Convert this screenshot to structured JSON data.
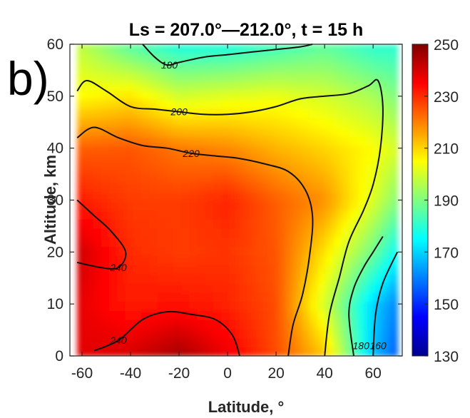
{
  "panel_label": "b)",
  "chart_data": {
    "type": "heatmap",
    "title": "Ls = 207.0°—212.0°, t = 15 h",
    "xlabel": "Latitude, °",
    "ylabel": "Altitude, km",
    "xlim": [
      -65,
      72
    ],
    "ylim": [
      0,
      60
    ],
    "x_ticks": [
      "-60",
      "-40",
      "-20",
      "0",
      "20",
      "40",
      "60"
    ],
    "y_ticks": [
      "0",
      "10",
      "20",
      "30",
      "40",
      "50",
      "60"
    ],
    "colorbar": {
      "range": [
        130,
        250
      ],
      "ticks": [
        "130",
        "150",
        "170",
        "190",
        "210",
        "230",
        "250"
      ],
      "colormap": [
        "#00008f",
        "#0000ff",
        "#00ffff",
        "#ffff00",
        "#ff0000",
        "#800000"
      ]
    },
    "temperature_grid": {
      "latitude": [
        -62,
        -40,
        -20,
        0,
        20,
        40,
        60,
        70
      ],
      "altitude": [
        0,
        10,
        20,
        30,
        40,
        50,
        60
      ],
      "values": [
        [
          238,
          240,
          246,
          237,
          226,
          212,
          168,
          155
        ],
        [
          238,
          232,
          233,
          231,
          226,
          200,
          170,
          160
        ],
        [
          241,
          230,
          228,
          229,
          225,
          208,
          188,
          175
        ],
        [
          232,
          228,
          228,
          231,
          224,
          218,
          201,
          190
        ],
        [
          224,
          225,
          221,
          219,
          214,
          210,
          205,
          200
        ],
        [
          205,
          208,
          200,
          202,
          203,
          200,
          195,
          190
        ],
        [
          198,
          185,
          178,
          178,
          182,
          186,
          180,
          180
        ]
      ]
    },
    "contour_levels": [
      "180",
      "200",
      "220",
      "240"
    ],
    "contours": [
      {
        "level": 180,
        "label": "180",
        "label_at": [
          -24,
          56
        ],
        "points": [
          [
            -35,
            60
          ],
          [
            -30,
            57.5
          ],
          [
            -25,
            56
          ],
          [
            -20,
            56.5
          ],
          [
            -10,
            57.5
          ],
          [
            0,
            58
          ],
          [
            10,
            58.5
          ],
          [
            20,
            59
          ],
          [
            30,
            59.5
          ],
          [
            35,
            60
          ]
        ]
      },
      {
        "level": 200,
        "label": "200",
        "label_at": [
          -20,
          47
        ],
        "points": [
          [
            -62,
            51
          ],
          [
            -58,
            53
          ],
          [
            -50,
            51
          ],
          [
            -40,
            48
          ],
          [
            -30,
            47.5
          ],
          [
            -20,
            47
          ],
          [
            -10,
            46.5
          ],
          [
            0,
            46.5
          ],
          [
            10,
            47
          ],
          [
            20,
            48
          ],
          [
            30,
            49.5
          ],
          [
            40,
            50
          ],
          [
            50,
            50.5
          ],
          [
            58,
            52
          ],
          [
            62,
            53
          ],
          [
            64,
            48
          ],
          [
            63,
            40
          ],
          [
            60,
            33
          ],
          [
            56,
            28
          ],
          [
            50,
            22
          ],
          [
            46,
            15
          ],
          [
            42,
            8
          ],
          [
            40,
            0
          ]
        ]
      },
      {
        "level": 220,
        "label": "220",
        "label_at": [
          -15,
          39
        ],
        "points": [
          [
            -62,
            42
          ],
          [
            -55,
            44
          ],
          [
            -45,
            42
          ],
          [
            -35,
            40.5
          ],
          [
            -25,
            40
          ],
          [
            -15,
            39
          ],
          [
            -5,
            38.5
          ],
          [
            5,
            38
          ],
          [
            15,
            37
          ],
          [
            25,
            35.5
          ],
          [
            32,
            32
          ],
          [
            35,
            27
          ],
          [
            34,
            20
          ],
          [
            31,
            12
          ],
          [
            27,
            6
          ],
          [
            25,
            0
          ]
        ]
      },
      {
        "level": 240,
        "label": "240",
        "label_at": [
          -45,
          17
        ],
        "points": [
          [
            -62,
            18
          ],
          [
            -52,
            17
          ],
          [
            -45,
            17
          ],
          [
            -42,
            20
          ],
          [
            -48,
            24
          ],
          [
            -55,
            27
          ],
          [
            -62,
            30
          ]
        ]
      },
      {
        "level": 240,
        "label": "240",
        "label_at": [
          -45,
          3
        ],
        "points": [
          [
            -55,
            1
          ],
          [
            -45,
            3
          ],
          [
            -35,
            7
          ],
          [
            -25,
            8.5
          ],
          [
            -15,
            8
          ],
          [
            -5,
            7
          ],
          [
            2,
            4
          ],
          [
            5,
            0
          ]
        ]
      },
      {
        "level": 180,
        "label": "180",
        "label_at": [
          55,
          2
        ],
        "points": [
          [
            52,
            0
          ],
          [
            50,
            8
          ],
          [
            52,
            13
          ],
          [
            56,
            17
          ],
          [
            60,
            20
          ],
          [
            64,
            23
          ]
        ]
      },
      {
        "level": 160,
        "label": "160",
        "label_at": [
          62,
          2
        ],
        "points": [
          [
            60,
            0
          ],
          [
            61,
            8
          ],
          [
            64,
            14
          ],
          [
            70,
            20
          ]
        ]
      }
    ]
  }
}
